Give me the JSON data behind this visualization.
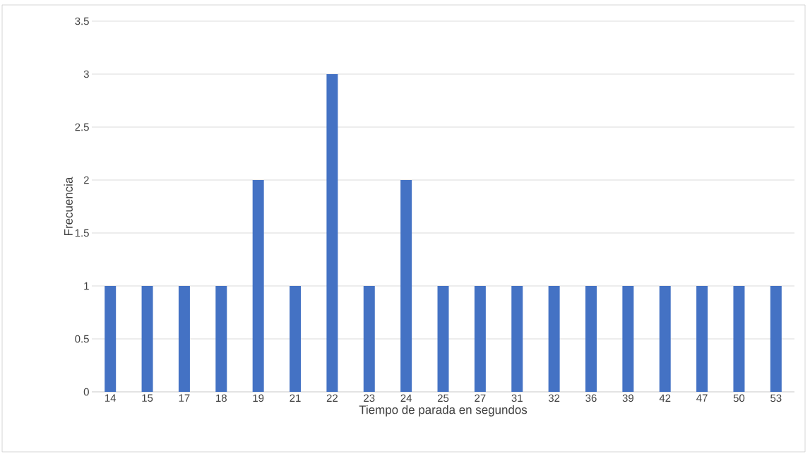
{
  "chart_data": {
    "type": "bar",
    "xlabel": "Tiempo de parada en segundos",
    "ylabel": "Frecuencia",
    "categories": [
      "14",
      "15",
      "17",
      "18",
      "19",
      "21",
      "22",
      "23",
      "24",
      "25",
      "27",
      "31",
      "32",
      "36",
      "39",
      "42",
      "47",
      "50",
      "53"
    ],
    "values": [
      1,
      1,
      1,
      1,
      2,
      1,
      3,
      1,
      2,
      1,
      1,
      1,
      1,
      1,
      1,
      1,
      1,
      1,
      1
    ],
    "color": "#4472c4",
    "ylim": [
      0,
      3.5
    ],
    "yticks": [
      0,
      0.5,
      1,
      1.5,
      2,
      2.5,
      3,
      3.5
    ],
    "grid": "y"
  }
}
